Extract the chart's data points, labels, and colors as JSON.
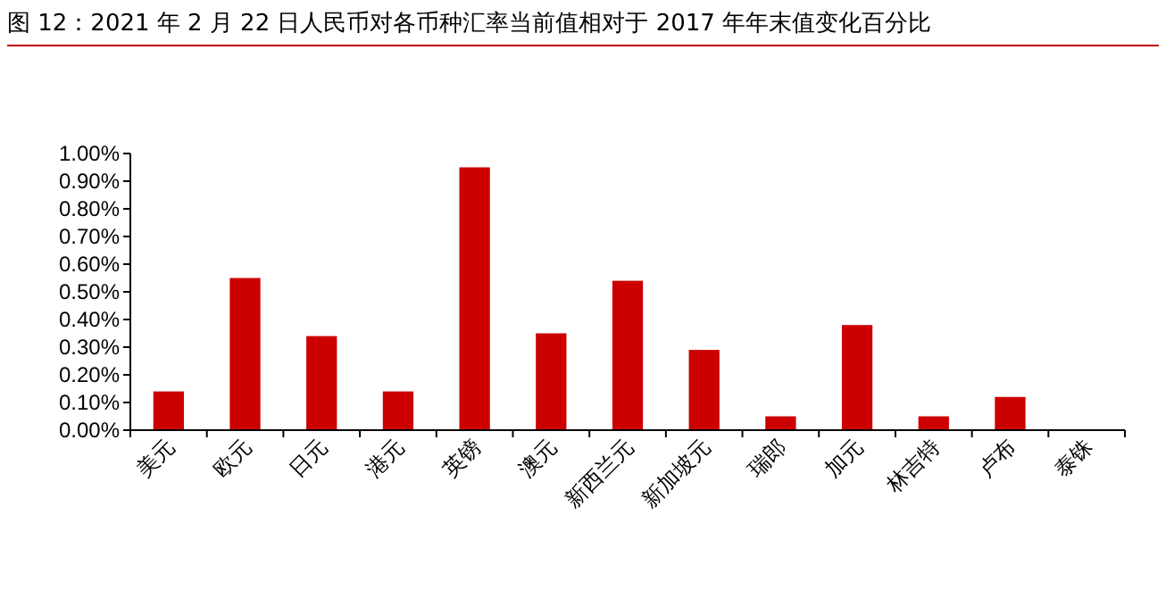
{
  "chart_data": {
    "type": "bar",
    "title": "图 12：2021 年 2 月 22 日人民币对各币种汇率当前值相对于 2017 年年末值变化百分比",
    "categories": [
      "美元",
      "欧元",
      "日元",
      "港元",
      "英镑",
      "澳元",
      "新西兰元",
      "新加坡元",
      "瑞郎",
      "加元",
      "林吉特",
      "卢布",
      "泰铢"
    ],
    "values": [
      0.14,
      0.55,
      0.34,
      0.14,
      0.95,
      0.35,
      0.54,
      0.29,
      0.05,
      0.38,
      0.05,
      0.12,
      0
    ],
    "color": "#cc0000",
    "ylim": [
      0,
      1
    ],
    "yticks": [
      {
        "value": 0,
        "label": "0.00%"
      },
      {
        "value": 0.1,
        "label": "0.10%"
      },
      {
        "value": 0.2,
        "label": "0.20%"
      },
      {
        "value": 0.3,
        "label": "0.30%"
      },
      {
        "value": 0.4,
        "label": "0.40%"
      },
      {
        "value": 0.5,
        "label": "0.50%"
      },
      {
        "value": 0.6,
        "label": "0.60%"
      },
      {
        "value": 0.7,
        "label": "0.70%"
      },
      {
        "value": 0.8,
        "label": "0.80%"
      },
      {
        "value": 0.9,
        "label": "0.90%"
      },
      {
        "value": 1,
        "label": "1.00%"
      }
    ],
    "grid": false
  }
}
